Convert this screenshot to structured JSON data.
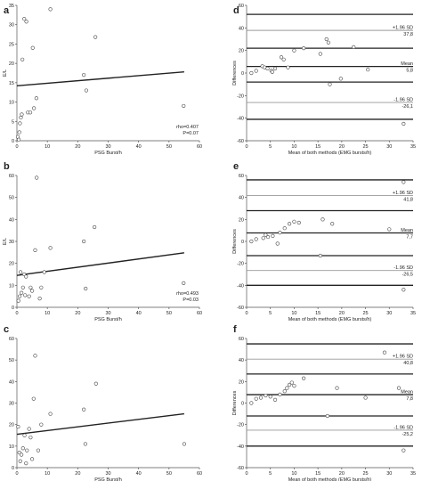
{
  "chart_data": [
    {
      "id": "a",
      "type": "scatter",
      "panel_label": "a",
      "xlabel": "PSG Burst/h",
      "ylabel": "E/L",
      "xlim": [
        0,
        60
      ],
      "ylim": [
        0,
        35
      ],
      "xticks": [
        0,
        10,
        20,
        30,
        40,
        50,
        60
      ],
      "yticks": [
        0,
        5,
        10,
        15,
        20,
        25,
        30,
        35
      ],
      "points": [
        [
          0.3,
          1
        ],
        [
          0.6,
          0.3
        ],
        [
          1,
          4.5
        ],
        [
          1.3,
          6
        ],
        [
          1.6,
          6.8
        ],
        [
          0.8,
          2.2
        ],
        [
          1.8,
          21
        ],
        [
          2.4,
          31.5
        ],
        [
          3.1,
          30.8
        ],
        [
          3.6,
          7.3
        ],
        [
          4.4,
          7.3
        ],
        [
          5.2,
          24
        ],
        [
          5.6,
          8.4
        ],
        [
          6.4,
          11
        ],
        [
          11,
          34
        ],
        [
          22,
          17
        ],
        [
          22.8,
          13
        ],
        [
          25.8,
          26.8
        ],
        [
          54.8,
          9
        ]
      ],
      "regression": {
        "x": [
          0,
          55
        ],
        "y": [
          14.2,
          17.8
        ]
      },
      "annotations": [
        "rho=0.407",
        "P=0.07"
      ]
    },
    {
      "id": "b",
      "type": "scatter",
      "panel_label": "b",
      "xlabel": "PSG Burst/h",
      "ylabel": "E/L",
      "xlim": [
        0,
        60
      ],
      "ylim": [
        0,
        60
      ],
      "xticks": [
        0,
        10,
        20,
        30,
        40,
        50,
        60
      ],
      "yticks": [
        0,
        10,
        20,
        30,
        40,
        50,
        60
      ],
      "points": [
        [
          0.5,
          3
        ],
        [
          0.9,
          5
        ],
        [
          1.2,
          16
        ],
        [
          1.5,
          6.6
        ],
        [
          2,
          9
        ],
        [
          2.4,
          15
        ],
        [
          2.7,
          5.5
        ],
        [
          3,
          14
        ],
        [
          4,
          5
        ],
        [
          4.5,
          9
        ],
        [
          5,
          7.5
        ],
        [
          6,
          26
        ],
        [
          6.5,
          59
        ],
        [
          7.5,
          4
        ],
        [
          8,
          9
        ],
        [
          9,
          16
        ],
        [
          11,
          27
        ],
        [
          22,
          30
        ],
        [
          25.5,
          36.5
        ],
        [
          22.6,
          8.5
        ],
        [
          54.8,
          11
        ]
      ],
      "regression": {
        "x": [
          0,
          55
        ],
        "y": [
          14.5,
          24.8
        ]
      },
      "annotations": [
        "rho=0.493",
        "P=0.03"
      ]
    },
    {
      "id": "c",
      "type": "scatter",
      "panel_label": "c",
      "xlabel": "PSG Burst/h",
      "ylabel": "",
      "xlim": [
        0,
        60
      ],
      "ylim": [
        0,
        60
      ],
      "xticks": [
        0,
        10,
        20,
        30,
        40,
        50,
        60
      ],
      "yticks": [
        0,
        10,
        20,
        30,
        40,
        50,
        60
      ],
      "points": [
        [
          0.4,
          19
        ],
        [
          0.8,
          7
        ],
        [
          1.1,
          3
        ],
        [
          1.5,
          6
        ],
        [
          2,
          9
        ],
        [
          2.5,
          15
        ],
        [
          3,
          2
        ],
        [
          3.3,
          8
        ],
        [
          4,
          18
        ],
        [
          4.5,
          14
        ],
        [
          5,
          4
        ],
        [
          5.5,
          32
        ],
        [
          6,
          52
        ],
        [
          7,
          8
        ],
        [
          8,
          20
        ],
        [
          11,
          25
        ],
        [
          22,
          27
        ],
        [
          22.5,
          11
        ],
        [
          26,
          39
        ],
        [
          55,
          11
        ]
      ],
      "regression": {
        "x": [
          0,
          55
        ],
        "y": [
          15.5,
          25
        ]
      }
    },
    {
      "id": "d",
      "type": "scatter",
      "panel_label": "d",
      "xlabel": "Mean of both methods (EMG bursts/h)",
      "ylabel": "Differences",
      "xlim": [
        0,
        35
      ],
      "ylim": [
        -60,
        60
      ],
      "xticks": [
        0,
        5,
        10,
        15,
        20,
        25,
        30,
        35
      ],
      "yticks": [
        -60,
        -40,
        -20,
        0,
        20,
        40,
        60
      ],
      "points": [
        [
          1,
          0
        ],
        [
          2,
          2
        ],
        [
          3.3,
          6
        ],
        [
          3.8,
          5
        ],
        [
          4.4,
          4
        ],
        [
          5.2,
          2
        ],
        [
          5.4,
          1
        ],
        [
          6,
          4
        ],
        [
          7.3,
          14
        ],
        [
          7.8,
          12
        ],
        [
          8.7,
          5
        ],
        [
          10,
          20
        ],
        [
          12,
          22
        ],
        [
          15.5,
          17
        ],
        [
          16.8,
          30
        ],
        [
          17.2,
          27
        ],
        [
          17.5,
          -10
        ],
        [
          19.8,
          -5
        ],
        [
          22.5,
          23
        ],
        [
          25.5,
          3
        ],
        [
          33,
          -45
        ]
      ],
      "lines": [
        {
          "y": 52,
          "style": "main"
        },
        {
          "y": 37.8,
          "style": "grey",
          "label_top": "+1.96 SD",
          "label_bottom": "37,8"
        },
        {
          "y": 22,
          "style": "main"
        },
        {
          "y": 5.8,
          "style": "main",
          "label_top": "Mean",
          "label_bottom": "5,8"
        },
        {
          "y": -8,
          "style": "main"
        },
        {
          "y": -26.1,
          "style": "grey",
          "label_top": "-1.96 SD",
          "label_bottom": "-26,1"
        },
        {
          "y": -41,
          "style": "main"
        }
      ]
    },
    {
      "id": "e",
      "type": "scatter",
      "panel_label": "e",
      "xlabel": "Mean of both methods (EMG bursts/h)",
      "ylabel": "Differences",
      "xlim": [
        0,
        35
      ],
      "ylim": [
        -60,
        60
      ],
      "xticks": [
        0,
        5,
        10,
        15,
        20,
        25,
        30,
        35
      ],
      "yticks": [
        -60,
        -40,
        -20,
        0,
        20,
        40,
        60
      ],
      "points": [
        [
          1,
          0
        ],
        [
          2,
          2
        ],
        [
          3.5,
          3
        ],
        [
          4,
          6
        ],
        [
          4.5,
          4
        ],
        [
          5.5,
          5
        ],
        [
          6.5,
          -2
        ],
        [
          7,
          8
        ],
        [
          8,
          12
        ],
        [
          9,
          16
        ],
        [
          10,
          18
        ],
        [
          11,
          17
        ],
        [
          15.5,
          -13
        ],
        [
          16,
          20
        ],
        [
          18,
          16
        ],
        [
          30,
          11
        ],
        [
          33,
          54
        ],
        [
          33,
          -44
        ]
      ],
      "lines": [
        {
          "y": 56,
          "style": "main"
        },
        {
          "y": 41.8,
          "style": "grey",
          "label_top": "+1.96 SD",
          "label_bottom": "41,8"
        },
        {
          "y": 28,
          "style": "main"
        },
        {
          "y": 7.7,
          "style": "main",
          "label_top": "Mean",
          "label_bottom": "7,7"
        },
        {
          "y": -13,
          "style": "main"
        },
        {
          "y": -26.5,
          "style": "grey",
          "label_top": "-1.96 SD",
          "label_bottom": "-26,5"
        },
        {
          "y": -40,
          "style": "main"
        }
      ]
    },
    {
      "id": "f",
      "type": "scatter",
      "panel_label": "f",
      "xlabel": "Mean of both methods (EMG bursts/h)",
      "ylabel": "Differences",
      "xlim": [
        0,
        35
      ],
      "ylim": [
        -60,
        60
      ],
      "xticks": [
        0,
        5,
        10,
        15,
        20,
        25,
        30,
        35
      ],
      "yticks": [
        -60,
        -40,
        -20,
        0,
        20,
        40,
        60
      ],
      "points": [
        [
          1,
          0
        ],
        [
          2,
          4
        ],
        [
          3,
          5
        ],
        [
          4,
          7
        ],
        [
          5,
          6
        ],
        [
          6,
          3
        ],
        [
          7,
          8
        ],
        [
          8,
          11
        ],
        [
          8.5,
          14
        ],
        [
          9,
          17
        ],
        [
          9.5,
          19
        ],
        [
          10,
          16
        ],
        [
          12,
          23
        ],
        [
          17,
          -12
        ],
        [
          19,
          14
        ],
        [
          25,
          5
        ],
        [
          29,
          47
        ],
        [
          32,
          14
        ],
        [
          33,
          -44
        ]
      ],
      "lines": [
        {
          "y": 55,
          "style": "main"
        },
        {
          "y": 40.8,
          "style": "grey",
          "label_top": "+1.96 SD",
          "label_bottom": "40,8"
        },
        {
          "y": 27,
          "style": "main"
        },
        {
          "y": 7.8,
          "style": "main",
          "label_top": "Mean",
          "label_bottom": "7,8"
        },
        {
          "y": -12,
          "style": "main"
        },
        {
          "y": -25.2,
          "style": "grey",
          "label_top": "-1.96 SD",
          "label_bottom": "-25,2"
        },
        {
          "y": -40,
          "style": "main"
        }
      ]
    }
  ]
}
